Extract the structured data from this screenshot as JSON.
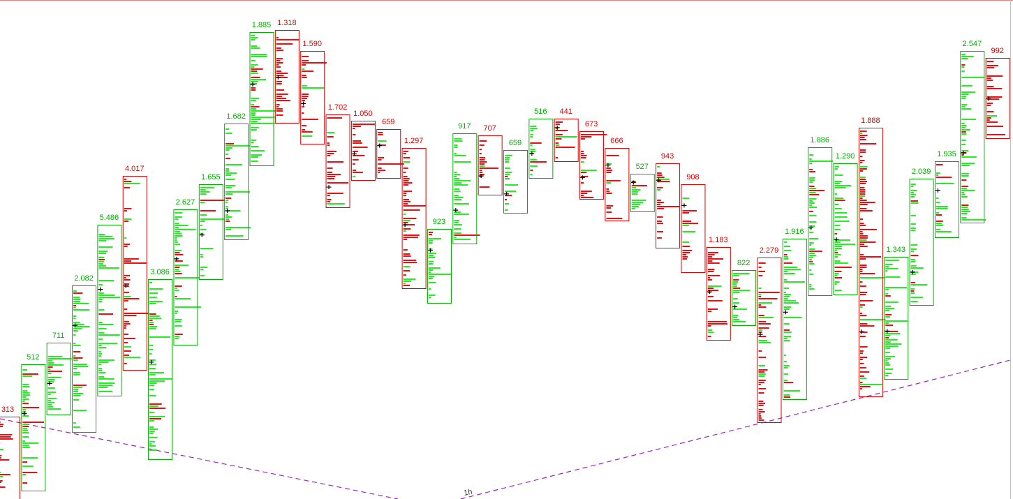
{
  "chart_data": {
    "type": "footprint",
    "timeframe_label": "1h",
    "ylim": [
      0,
      715
    ],
    "colors": {
      "up": "#00b000",
      "down": "#e00000",
      "up_profile": "#22ee22",
      "down_profile": "#e81010",
      "trend": "#a020c0"
    },
    "bars": [
      {
        "dir": "down",
        "high": 118,
        "low": 0,
        "volume": 313,
        "value_label": "313"
      },
      {
        "dir": "up",
        "high": 193,
        "low": 12,
        "volume": 512,
        "value_label": "512"
      },
      {
        "dir": "up",
        "high": 224,
        "low": 121,
        "volume": 711,
        "value_label": "711"
      },
      {
        "dir": "up",
        "high": 306,
        "low": 96,
        "volume": 2082,
        "value_label": "2.082"
      },
      {
        "dir": "up",
        "high": 393,
        "low": 148,
        "volume": 5486,
        "value_label": "5.486"
      },
      {
        "dir": "down",
        "high": 463,
        "low": 185,
        "volume": 4017,
        "value_label": "4.017"
      },
      {
        "dir": "up",
        "high": 315,
        "low": 57,
        "volume": 3086,
        "value_label": "3.086"
      },
      {
        "dir": "up",
        "high": 415,
        "low": 221,
        "volume": 2627,
        "value_label": "2.627"
      },
      {
        "dir": "up",
        "high": 451,
        "low": 315,
        "volume": 1655,
        "value_label": "1.655"
      },
      {
        "dir": "up",
        "high": 538,
        "low": 372,
        "volume": 1682,
        "value_label": "1.682"
      },
      {
        "dir": "up",
        "high": 669,
        "low": 478,
        "volume": 1885,
        "value_label": "1.885"
      },
      {
        "dir": "down",
        "high": 672,
        "low": 539,
        "volume": 1318,
        "value_label": "1.318"
      },
      {
        "dir": "down",
        "high": 642,
        "low": 509,
        "volume": 1590,
        "value_label": "1.590"
      },
      {
        "dir": "down",
        "high": 551,
        "low": 418,
        "volume": 1702,
        "value_label": "1.702"
      },
      {
        "dir": "down",
        "high": 542,
        "low": 457,
        "volume": 1050,
        "value_label": "1.050"
      },
      {
        "dir": "down",
        "high": 530,
        "low": 460,
        "volume": 659,
        "value_label": "659"
      },
      {
        "dir": "down",
        "high": 503,
        "low": 302,
        "volume": 1297,
        "value_label": "1.297"
      },
      {
        "dir": "up",
        "high": 387,
        "low": 281,
        "volume": 923,
        "value_label": "923"
      },
      {
        "dir": "up",
        "high": 524,
        "low": 366,
        "volume": 917,
        "value_label": "917"
      },
      {
        "dir": "down",
        "high": 521,
        "low": 436,
        "volume": 707,
        "value_label": "707"
      },
      {
        "dir": "up",
        "high": 500,
        "low": 410,
        "volume": 659,
        "value_label": "659"
      },
      {
        "dir": "up",
        "high": 545,
        "low": 460,
        "volume": 516,
        "value_label": "516"
      },
      {
        "dir": "down",
        "high": 545,
        "low": 484,
        "volume": 441,
        "value_label": "441"
      },
      {
        "dir": "down",
        "high": 527,
        "low": 430,
        "volume": 673,
        "value_label": "673"
      },
      {
        "dir": "down",
        "high": 503,
        "low": 399,
        "volume": 666,
        "value_label": "666"
      },
      {
        "dir": "up",
        "high": 466,
        "low": 412,
        "volume": 527,
        "value_label": "527"
      },
      {
        "dir": "down",
        "high": 481,
        "low": 360,
        "volume": 943,
        "value_label": "943"
      },
      {
        "dir": "down",
        "high": 451,
        "low": 325,
        "volume": 908,
        "value_label": "908"
      },
      {
        "dir": "down",
        "high": 361,
        "low": 228,
        "volume": 1183,
        "value_label": "1.183"
      },
      {
        "dir": "up",
        "high": 328,
        "low": 249,
        "volume": 822,
        "value_label": "822"
      },
      {
        "dir": "down",
        "high": 346,
        "low": 110,
        "volume": 2279,
        "value_label": "2.279"
      },
      {
        "dir": "up",
        "high": 373,
        "low": 143,
        "volume": 1916,
        "value_label": "1.916"
      },
      {
        "dir": "up",
        "high": 504,
        "low": 292,
        "volume": 1886,
        "value_label": "1.886"
      },
      {
        "dir": "up",
        "high": 481,
        "low": 293,
        "volume": 1290,
        "value_label": "1.290"
      },
      {
        "dir": "down",
        "high": 532,
        "low": 147,
        "volume": 1888,
        "value_label": "1.888"
      },
      {
        "dir": "up",
        "high": 347,
        "low": 172,
        "volume": 1343,
        "value_label": "1.343"
      },
      {
        "dir": "up",
        "high": 459,
        "low": 278,
        "volume": 2039,
        "value_label": "2.039"
      },
      {
        "dir": "up",
        "high": 484,
        "low": 375,
        "volume": 1935,
        "value_label": "1.935"
      },
      {
        "dir": "up",
        "high": 642,
        "low": 396,
        "volume": 2547,
        "value_label": "2.547"
      },
      {
        "dir": "down",
        "high": 632,
        "low": 517,
        "volume": 992,
        "value_label": "992"
      }
    ]
  }
}
